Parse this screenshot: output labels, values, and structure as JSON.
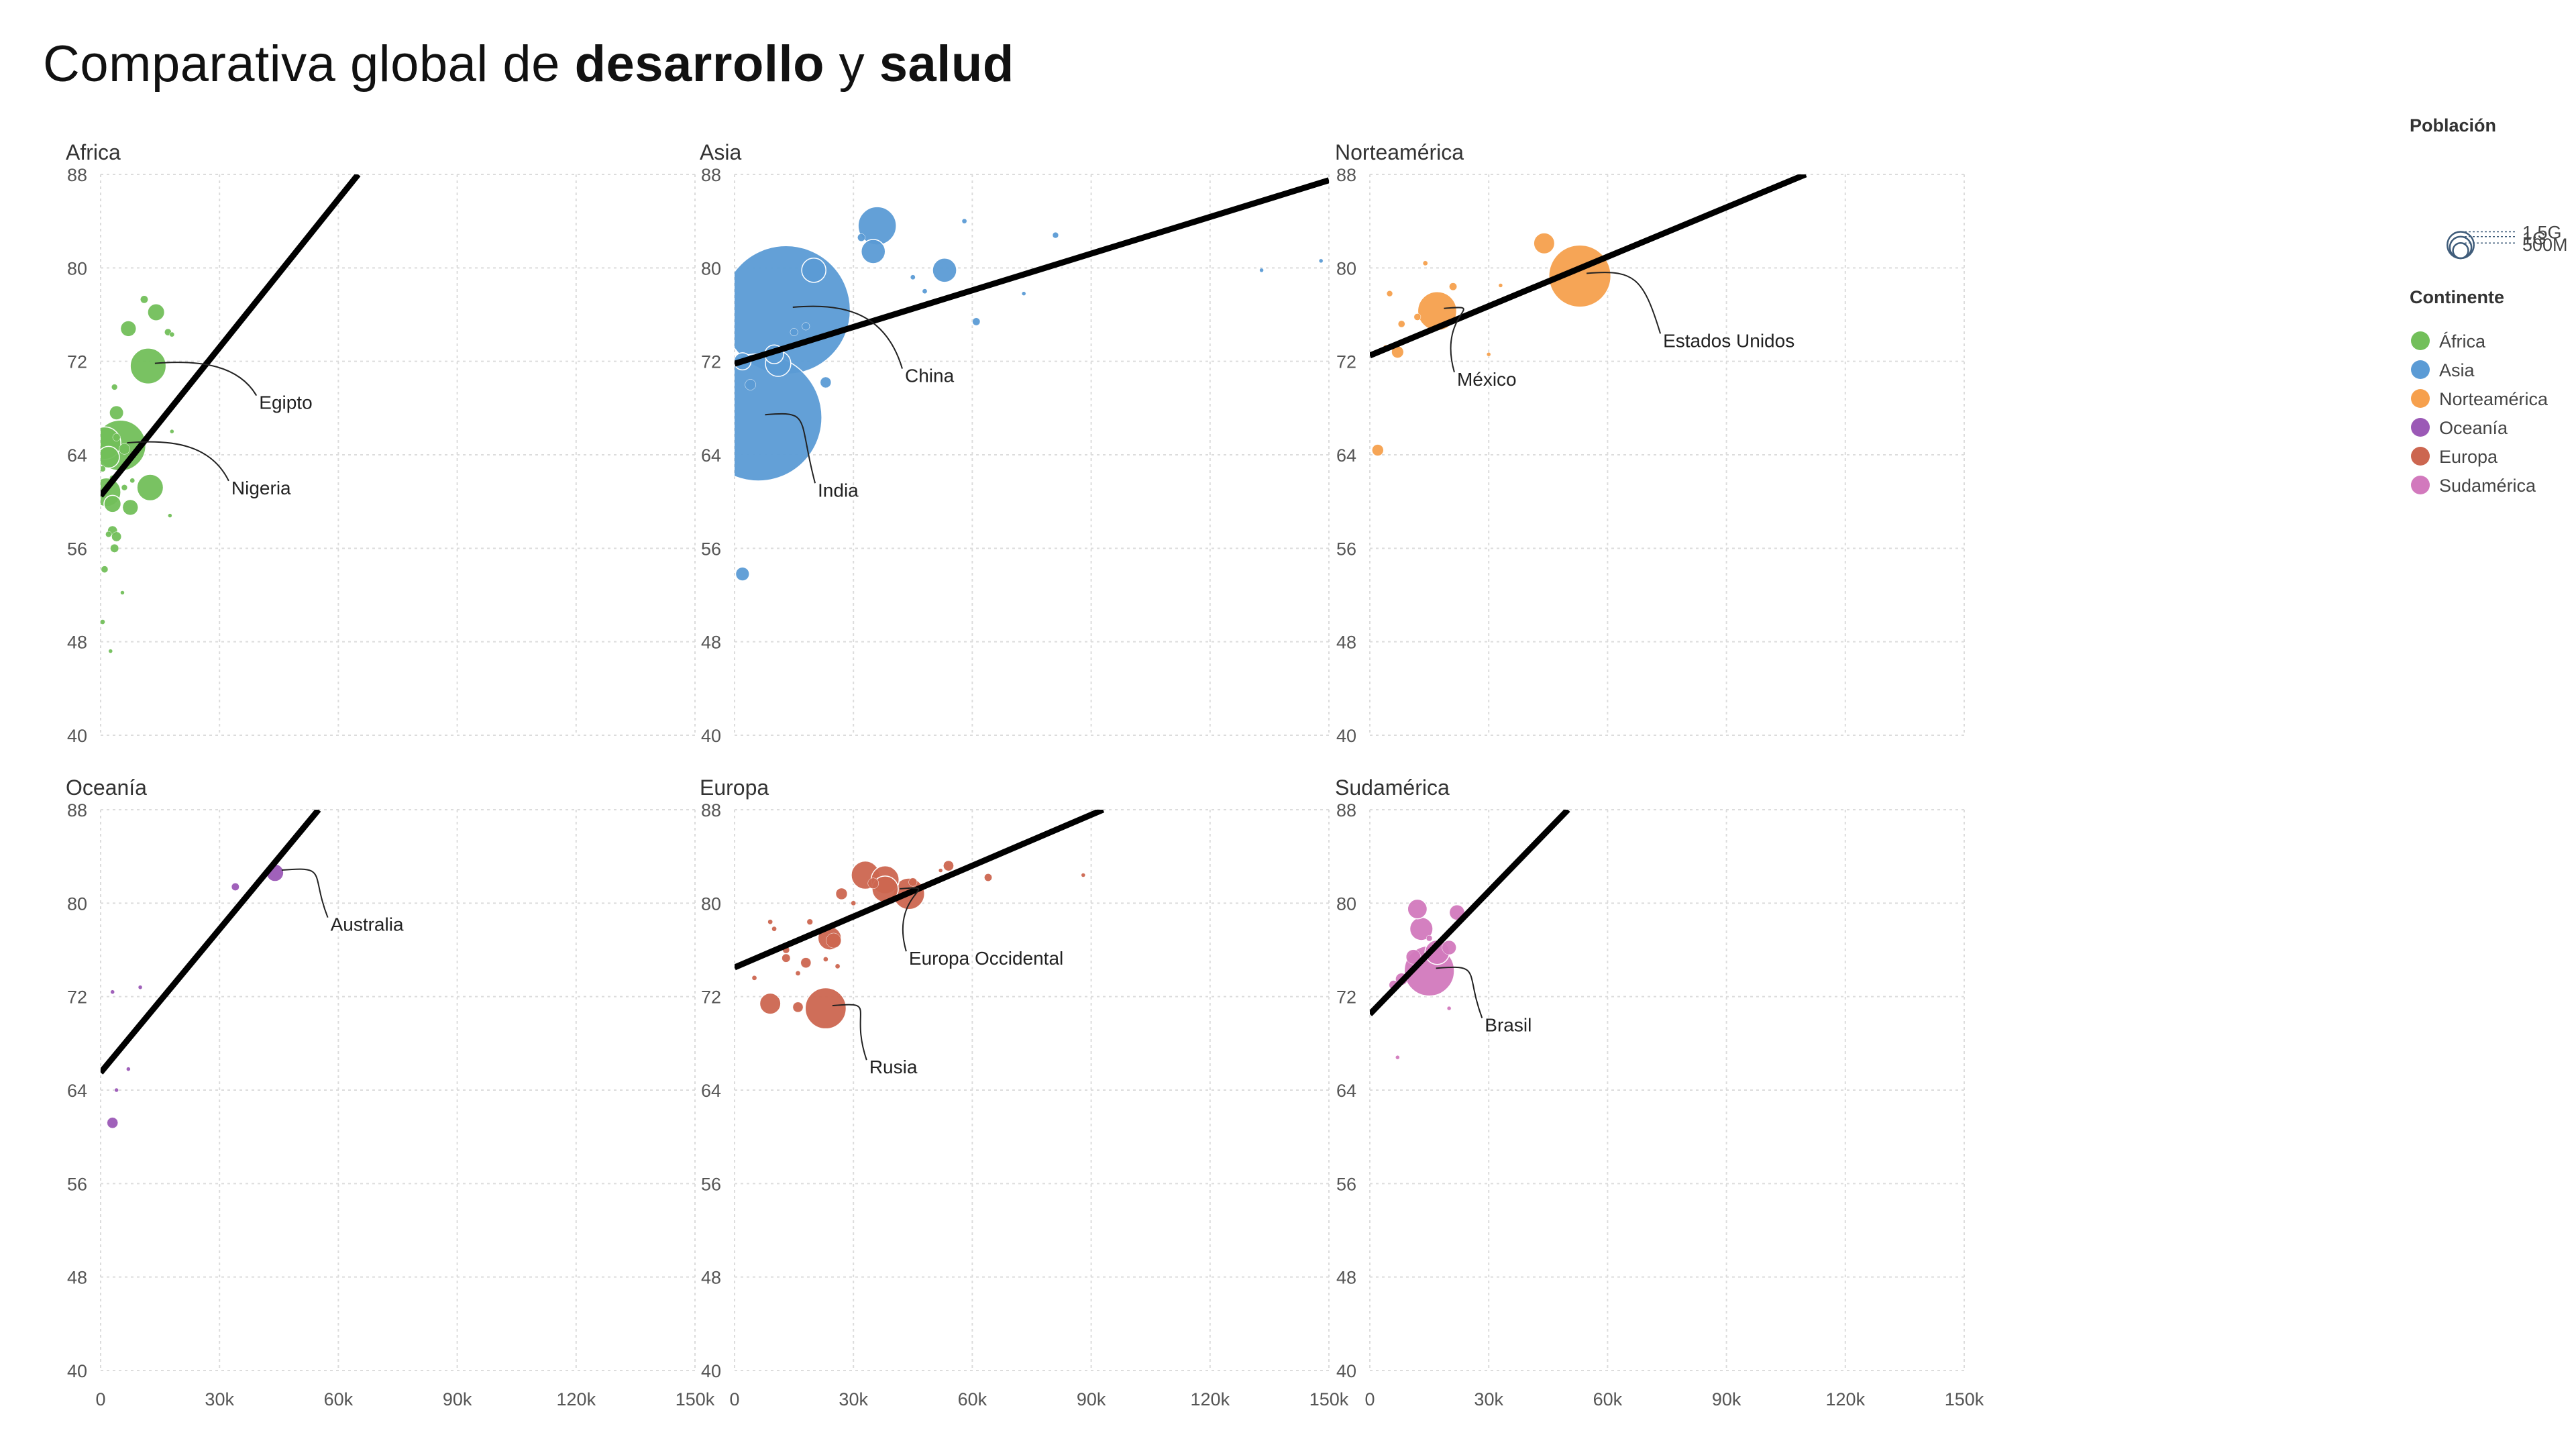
{
  "title": {
    "part1": "Comparativa global de ",
    "part2": "desarrollo",
    "part3": " y ",
    "part4": "salud"
  },
  "chart_data": {
    "type": "scatter",
    "xlim": [
      0,
      150000
    ],
    "ylim": [
      40,
      88
    ],
    "xticks": [
      0,
      30000,
      60000,
      90000,
      120000,
      150000
    ],
    "xtick_labels": [
      "0",
      "30k",
      "60k",
      "90k",
      "120k",
      "150k"
    ],
    "yticks": [
      40,
      48,
      56,
      64,
      72,
      80,
      88
    ],
    "ytick_labels": [
      "40",
      "48",
      "56",
      "64",
      "72",
      "80",
      "88"
    ],
    "grid": true,
    "legend_placement": "right",
    "size_legend": {
      "title": "Población",
      "entries": [
        {
          "label": "1.5G",
          "value": 1500000000
        },
        {
          "label": "1G",
          "value": 1000000000
        },
        {
          "label": "500M",
          "value": 500000000
        }
      ]
    },
    "color_legend": {
      "title": "Continente",
      "entries": [
        {
          "label": "África",
          "color": "#72bf5a"
        },
        {
          "label": "Asia",
          "color": "#5b9bd5"
        },
        {
          "label": "Norteamérica",
          "color": "#f6a04d"
        },
        {
          "label": "Oceanía",
          "color": "#9b59b6"
        },
        {
          "label": "Europa",
          "color": "#cc6650"
        },
        {
          "label": "Sudamérica",
          "color": "#d279bd"
        }
      ]
    },
    "panels": [
      {
        "name": "Africa",
        "color": "#72bf5a",
        "trend": [
          [
            0,
            60.5
          ],
          [
            65000,
            88
          ]
        ],
        "points": [
          [
            1000,
            65.0,
            90
          ],
          [
            2000,
            63.8,
            40
          ],
          [
            5000,
            64.8,
            220
          ],
          [
            12000,
            71.6,
            110
          ],
          [
            12500,
            61.2,
            60
          ],
          [
            1500,
            60.8,
            70
          ],
          [
            3000,
            59.8,
            25
          ],
          [
            7500,
            59.5,
            20
          ],
          [
            14000,
            76.2,
            25
          ],
          [
            7000,
            74.8,
            20
          ],
          [
            11000,
            77.3,
            5
          ],
          [
            17000,
            74.5,
            4
          ],
          [
            18000,
            74.3,
            2
          ],
          [
            4000,
            67.6,
            16
          ],
          [
            3500,
            69.8,
            3
          ],
          [
            3000,
            57.5,
            8
          ],
          [
            4000,
            57.0,
            8
          ],
          [
            2000,
            57.2,
            3
          ],
          [
            3500,
            56.0,
            6
          ],
          [
            1000,
            54.2,
            4
          ],
          [
            500,
            49.7,
            2
          ],
          [
            2500,
            47.2,
            1
          ],
          [
            6000,
            61.2,
            3
          ],
          [
            8000,
            61.8,
            2
          ],
          [
            5500,
            52.2,
            1
          ],
          [
            17500,
            58.8,
            1
          ],
          [
            3000,
            62.0,
            3
          ],
          [
            4000,
            65.5,
            5
          ],
          [
            18000,
            66.0,
            1
          ],
          [
            500,
            62.8,
            3
          ],
          [
            6000,
            64.5,
            10
          ]
        ],
        "labels": [
          {
            "text": "Egipto",
            "x": 12000,
            "y": 71.6,
            "lx": 40000,
            "ly": 68.5
          },
          {
            "text": "Nigeria",
            "x": 5000,
            "y": 64.8,
            "lx": 33000,
            "ly": 61.2
          }
        ]
      },
      {
        "name": "Asia",
        "color": "#5b9bd5",
        "trend": [
          [
            0,
            71.8
          ],
          [
            150000,
            87.5
          ]
        ],
        "points": [
          [
            13000,
            76.4,
            1410
          ],
          [
            6000,
            67.2,
            1380
          ],
          [
            36000,
            83.6,
            125
          ],
          [
            35000,
            81.4,
            50
          ],
          [
            53000,
            79.8,
            50
          ],
          [
            20000,
            79.8,
            50
          ],
          [
            11000,
            71.8,
            55
          ],
          [
            2000,
            72.0,
            25
          ],
          [
            10000,
            72.6,
            30
          ],
          [
            23000,
            70.2,
            10
          ],
          [
            2000,
            53.8,
            15
          ],
          [
            32000,
            82.6,
            5
          ],
          [
            61000,
            75.4,
            5
          ],
          [
            81000,
            82.8,
            3
          ],
          [
            48000,
            78.0,
            2
          ],
          [
            45000,
            79.2,
            2
          ],
          [
            58000,
            84.0,
            2
          ],
          [
            83000,
            80.4,
            1
          ],
          [
            133000,
            79.8,
            1
          ],
          [
            148000,
            80.6,
            1
          ],
          [
            73000,
            77.8,
            1
          ],
          [
            18000,
            75.0,
            5
          ],
          [
            15000,
            74.5,
            5
          ],
          [
            4000,
            70.0,
            10
          ]
        ],
        "labels": [
          {
            "text": "China",
            "x": 13000,
            "y": 76.4,
            "lx": 43000,
            "ly": 70.8
          },
          {
            "text": "India",
            "x": 6000,
            "y": 67.2,
            "lx": 21000,
            "ly": 61.0
          }
        ]
      },
      {
        "name": "Norteamérica",
        "color": "#f6a04d",
        "trend": [
          [
            0,
            72.5
          ],
          [
            110000,
            88
          ]
        ],
        "points": [
          [
            53000,
            79.3,
            330
          ],
          [
            17000,
            76.3,
            130
          ],
          [
            44000,
            82.1,
            38
          ],
          [
            7000,
            72.8,
            12
          ],
          [
            21000,
            78.4,
            5
          ],
          [
            12000,
            75.8,
            4
          ],
          [
            8000,
            75.2,
            4
          ],
          [
            5000,
            77.8,
            3
          ],
          [
            14000,
            80.4,
            2
          ],
          [
            33000,
            78.5,
            1
          ],
          [
            2000,
            64.4,
            11
          ],
          [
            4000,
            73.2,
            2
          ],
          [
            30000,
            72.6,
            1
          ]
        ],
        "labels": [
          {
            "text": "Estados Unidos",
            "x": 53000,
            "y": 79.3,
            "lx": 74000,
            "ly": 73.8
          },
          {
            "text": "México",
            "x": 17000,
            "y": 76.3,
            "lx": 22000,
            "ly": 70.5
          }
        ]
      },
      {
        "name": "Oceanía",
        "color": "#9b59b6",
        "trend": [
          [
            0,
            65.5
          ],
          [
            55000,
            88
          ]
        ],
        "points": [
          [
            44000,
            82.6,
            26
          ],
          [
            34000,
            81.4,
            5
          ],
          [
            3000,
            61.2,
            10
          ],
          [
            3000,
            72.4,
            1
          ],
          [
            7000,
            65.8,
            1
          ],
          [
            10000,
            72.8,
            1
          ],
          [
            4000,
            64.0,
            1
          ]
        ],
        "labels": [
          {
            "text": "Australia",
            "x": 44000,
            "y": 82.6,
            "lx": 58000,
            "ly": 78.2
          }
        ]
      },
      {
        "name": "Europa",
        "color": "#cc6650",
        "trend": [
          [
            0,
            74.5
          ],
          [
            93000,
            88
          ]
        ],
        "points": [
          [
            23000,
            71.0,
            144
          ],
          [
            44000,
            80.8,
            84
          ],
          [
            33000,
            82.4,
            68
          ],
          [
            38000,
            82.0,
            67
          ],
          [
            38000,
            81.2,
            59
          ],
          [
            9000,
            71.4,
            38
          ],
          [
            24000,
            77.0,
            47
          ],
          [
            18000,
            74.9,
            9
          ],
          [
            25000,
            76.8,
            19
          ],
          [
            16000,
            71.1,
            9
          ],
          [
            27000,
            80.8,
            11
          ],
          [
            35000,
            81.7,
            10
          ],
          [
            54000,
            83.2,
            9
          ],
          [
            64000,
            82.2,
            5
          ],
          [
            45000,
            81.8,
            6
          ],
          [
            13000,
            75.3,
            6
          ],
          [
            9000,
            78.4,
            2
          ],
          [
            10000,
            77.8,
            2
          ],
          [
            13000,
            76.0,
            4
          ],
          [
            16000,
            74.0,
            2
          ],
          [
            23000,
            75.2,
            2
          ],
          [
            26000,
            74.6,
            2
          ],
          [
            19000,
            78.4,
            3
          ],
          [
            5000,
            73.6,
            2
          ],
          [
            29000,
            78.8,
            2
          ],
          [
            88000,
            82.4,
            1
          ],
          [
            52000,
            82.8,
            1
          ],
          [
            30000,
            80.0,
            2
          ]
        ],
        "labels": [
          {
            "text": "Europa Occidental",
            "x": 40000,
            "y": 81.0,
            "lx": 44000,
            "ly": 75.3
          },
          {
            "text": "Rusia",
            "x": 23000,
            "y": 71.0,
            "lx": 34000,
            "ly": 66.0
          }
        ]
      },
      {
        "name": "Sudamérica",
        "color": "#d279bd",
        "trend": [
          [
            0,
            70.5
          ],
          [
            50000,
            88
          ]
        ],
        "points": [
          [
            15000,
            74.2,
            215
          ],
          [
            17000,
            75.8,
            51
          ],
          [
            13000,
            77.8,
            46
          ],
          [
            12000,
            79.5,
            33
          ],
          [
            22000,
            79.2,
            19
          ],
          [
            11000,
            75.4,
            18
          ],
          [
            8000,
            73.5,
            12
          ],
          [
            20000,
            76.2,
            17
          ],
          [
            6000,
            73.0,
            7
          ],
          [
            15000,
            77.0,
            3
          ],
          [
            7000,
            66.8,
            1
          ],
          [
            20000,
            71.0,
            1
          ]
        ],
        "labels": [
          {
            "text": "Brasil",
            "x": 15000,
            "y": 74.2,
            "lx": 29000,
            "ly": 69.6
          }
        ]
      }
    ]
  }
}
